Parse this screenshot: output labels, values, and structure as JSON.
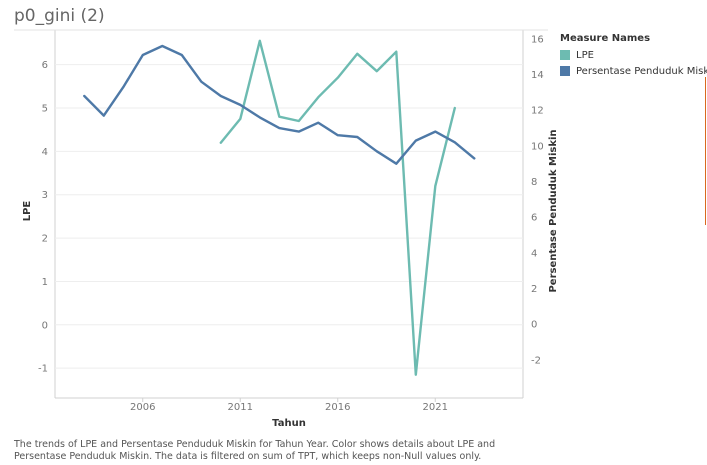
{
  "title": "p0_gini (2)",
  "legend": {
    "title": "Measure Names",
    "items": [
      {
        "label": "LPE",
        "color": "#6dbbb1"
      },
      {
        "label": "Persentase Penduduk Miski",
        "color": "#4e79a7"
      }
    ]
  },
  "caption": "The trends of LPE and Persentase Penduduk Miskin for Tahun Year.  Color shows details about LPE and Persentase Penduduk Miskin. The data is filtered on sum of TPT, which keeps non-Null values only.",
  "chart_data": {
    "type": "line",
    "xlabel": "Tahun",
    "ylabel_left": "LPE",
    "ylabel_right": "Persentase Penduduk Miskin",
    "x_ticks": [
      "2006",
      "2011",
      "2016",
      "2021"
    ],
    "y_left_ticks": [
      "6",
      "5",
      "4",
      "3",
      "2",
      "1",
      "0",
      "-1"
    ],
    "y_right_ticks": [
      "16",
      "14",
      "12",
      "10",
      "8",
      "6",
      "4",
      "2",
      "0",
      "-2"
    ],
    "xlim": [
      2001.5,
      2025.5
    ],
    "ylim_left": [
      -1.55,
      6.8
    ],
    "ylim_right": [
      -3.8,
      16.5
    ],
    "grid": "horizontal",
    "legend_position": "right",
    "series": [
      {
        "name": "LPE",
        "axis": "left",
        "color": "#6dbbb1",
        "x": [
          2010,
          2011,
          2012,
          2013,
          2014,
          2015,
          2016,
          2017,
          2018,
          2019,
          2020,
          2021,
          2022
        ],
        "values": [
          4.2,
          4.75,
          6.55,
          4.8,
          4.7,
          5.25,
          5.7,
          6.25,
          5.85,
          6.3,
          -1.15,
          3.2,
          5.0
        ]
      },
      {
        "name": "Persentase Penduduk Miski",
        "axis": "right",
        "color": "#4e79a7",
        "x": [
          2003,
          2004,
          2005,
          2006,
          2007,
          2008,
          2009,
          2010,
          2011,
          2012,
          2013,
          2014,
          2015,
          2016,
          2017,
          2018,
          2019,
          2020,
          2021,
          2022,
          2023
        ],
        "values": [
          12.8,
          11.7,
          13.3,
          15.1,
          15.6,
          15.1,
          13.6,
          12.8,
          12.3,
          11.6,
          11.0,
          10.8,
          11.3,
          10.6,
          10.5,
          9.7,
          9.0,
          10.3,
          10.8,
          10.2,
          9.3
        ]
      }
    ]
  }
}
